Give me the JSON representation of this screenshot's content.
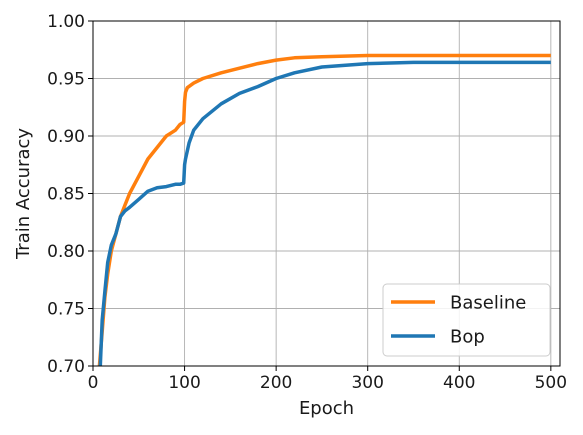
{
  "chart_data": {
    "type": "line",
    "xlabel": "Epoch",
    "ylabel": "Train Accuracy",
    "xlim": [
      0,
      510
    ],
    "ylim": [
      0.7,
      1.0
    ],
    "xticks": [
      "0",
      "100",
      "200",
      "300",
      "400",
      "500"
    ],
    "xtick_values": [
      0,
      100,
      200,
      300,
      400,
      500
    ],
    "yticks": [
      "0.70",
      "0.75",
      "0.80",
      "0.85",
      "0.90",
      "0.95",
      "1.00"
    ],
    "ytick_values": [
      0.7,
      0.75,
      0.8,
      0.85,
      0.9,
      0.95,
      1.0
    ],
    "grid": true,
    "legend_position": "lower-right",
    "series": [
      {
        "name": "Baseline",
        "color": "#ff7f0e",
        "x": [
          7,
          10,
          13,
          16,
          20,
          25,
          30,
          35,
          40,
          50,
          60,
          70,
          80,
          90,
          95,
          99,
          100,
          101,
          103,
          110,
          120,
          140,
          160,
          180,
          200,
          220,
          250,
          300,
          350,
          400,
          450,
          500
        ],
        "y": [
          0.7,
          0.73,
          0.76,
          0.78,
          0.8,
          0.815,
          0.83,
          0.84,
          0.85,
          0.865,
          0.88,
          0.89,
          0.9,
          0.905,
          0.91,
          0.912,
          0.93,
          0.938,
          0.942,
          0.946,
          0.95,
          0.955,
          0.959,
          0.963,
          0.966,
          0.968,
          0.969,
          0.97,
          0.97,
          0.97,
          0.97,
          0.97
        ]
      },
      {
        "name": "Bop",
        "color": "#1f77b4",
        "x": [
          8,
          10,
          13,
          16,
          20,
          25,
          30,
          35,
          40,
          50,
          60,
          70,
          80,
          90,
          95,
          99,
          100,
          101,
          105,
          110,
          120,
          140,
          160,
          180,
          200,
          220,
          250,
          300,
          350,
          400,
          450,
          500
        ],
        "y": [
          0.7,
          0.74,
          0.765,
          0.79,
          0.805,
          0.815,
          0.83,
          0.835,
          0.838,
          0.845,
          0.852,
          0.855,
          0.856,
          0.858,
          0.858,
          0.859,
          0.875,
          0.88,
          0.894,
          0.905,
          0.915,
          0.928,
          0.937,
          0.943,
          0.95,
          0.955,
          0.96,
          0.963,
          0.964,
          0.964,
          0.964,
          0.964
        ]
      }
    ]
  }
}
